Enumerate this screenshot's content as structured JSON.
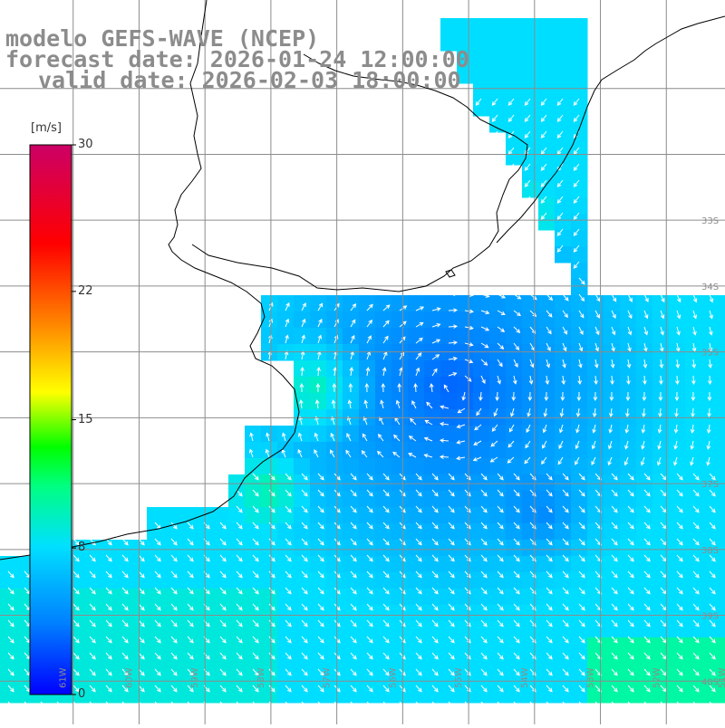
{
  "title": {
    "line1": "modelo GEFS-WAVE (NCEP)",
    "line2": "forecast date: 2026-01-24 12:00:00",
    "line3": "valid date: 2026-02-03 18:00:00"
  },
  "colorbar": {
    "unit": "[m/s]",
    "ticks": [
      {
        "value": 30,
        "label": "30"
      },
      {
        "value": 22,
        "label": "22"
      },
      {
        "value": 15,
        "label": "15"
      },
      {
        "value": 8,
        "label": "8"
      },
      {
        "value": 0,
        "label": "0"
      }
    ],
    "range": [
      0,
      30
    ],
    "colors": [
      "#0000ff",
      "#0080ff",
      "#00e0ff",
      "#00ff80",
      "#00ff00",
      "#ffff00",
      "#ff8000",
      "#ff0000",
      "#cc0066"
    ]
  },
  "map": {
    "lat_labels": [
      {
        "lat": -33,
        "label": "33S"
      },
      {
        "lat": -34,
        "label": "34S"
      },
      {
        "lat": -35,
        "label": "35S"
      },
      {
        "lat": -37,
        "label": "37S"
      },
      {
        "lat": -38,
        "label": "38S"
      },
      {
        "lat": -39,
        "label": "39S"
      },
      {
        "lat": -40,
        "label": "40S"
      }
    ],
    "lon_labels": [
      {
        "lon": -61,
        "label": "61W"
      },
      {
        "lon": -60,
        "label": "60W"
      },
      {
        "lon": -59,
        "label": "59W"
      },
      {
        "lon": -58,
        "label": "58W"
      },
      {
        "lon": -57,
        "label": "57W"
      },
      {
        "lon": -56,
        "label": "56W"
      },
      {
        "lon": -55,
        "label": "55W"
      },
      {
        "lon": -54,
        "label": "54W"
      },
      {
        "lon": -53,
        "label": "53W"
      },
      {
        "lon": -52,
        "label": "52W"
      },
      {
        "lon": -51,
        "label": "51W"
      }
    ],
    "lon_range": [
      -62,
      -51
    ],
    "lat_range": [
      -41,
      -30
    ],
    "colors": {
      "land": "#ffffff",
      "grid": "#8c8c8c",
      "coast": "#000000",
      "arrow": "#ffffff"
    }
  }
}
